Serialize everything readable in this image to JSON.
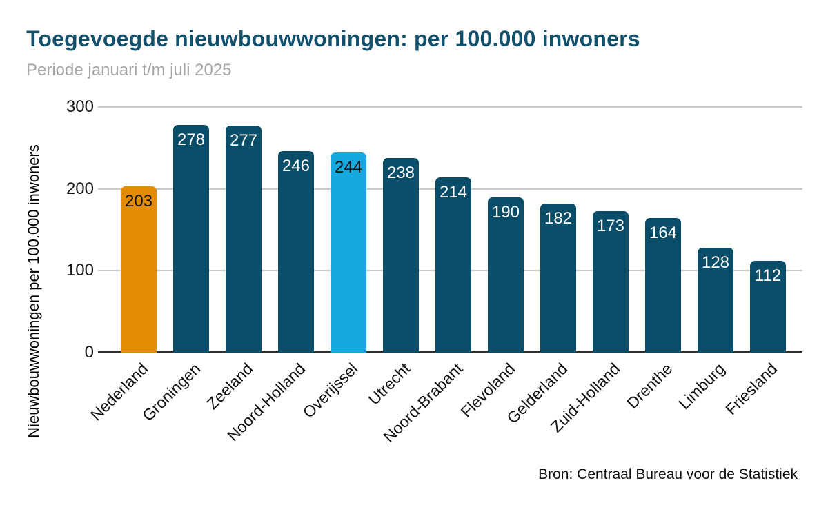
{
  "header": {
    "title": "Toegevoegde nieuwbouwwoningen: per 100.000 inwoners",
    "subtitle": "Periode januari t/m juli 2025"
  },
  "footer": {
    "source": "Bron: Centraal Bureau voor de Statistiek"
  },
  "chart_data": {
    "type": "bar",
    "title": "Toegevoegde nieuwbouwwoningen: per 100.000 inwoners",
    "subtitle": "Periode januari t/m juli 2025",
    "categories": [
      "Nederland",
      "Groningen",
      "Zeeland",
      "Noord-Holland",
      "Overijssel",
      "Utrecht",
      "Noord-Brabant",
      "Flevoland",
      "Gelderland",
      "Zuid-Holland",
      "Drenthe",
      "Limburg",
      "Friesland"
    ],
    "values": [
      203,
      278,
      277,
      246,
      244,
      238,
      214,
      190,
      182,
      173,
      164,
      128,
      112
    ],
    "xlabel": "",
    "ylabel": "Nieuwbouwwoningen per 100.000 inwoners",
    "ylim": [
      0,
      300
    ],
    "yticks": [
      0,
      100,
      200,
      300
    ],
    "grid": true,
    "legend": false,
    "source": "Bron: Centraal Bureau voor de Statistiek",
    "bar_colors": [
      "#E28C05",
      "#0A4D68",
      "#0A4D68",
      "#0A4D68",
      "#16A9E0",
      "#0A4D68",
      "#0A4D68",
      "#0A4D68",
      "#0A4D68",
      "#0A4D68",
      "#0A4D68",
      "#0A4D68",
      "#0A4D68"
    ],
    "value_label_colors": [
      "#111111",
      "#FFFFFF",
      "#FFFFFF",
      "#FFFFFF",
      "#111111",
      "#FFFFFF",
      "#FFFFFF",
      "#FFFFFF",
      "#FFFFFF",
      "#FFFFFF",
      "#FFFFFF",
      "#FFFFFF",
      "#FFFFFF"
    ],
    "colors": {
      "bar_default": "#0A4D68",
      "bar_highlight_nederland": "#E28C05",
      "bar_highlight_overijssel": "#16A9E0",
      "title": "#12506B",
      "subtitle": "#A5A5A5",
      "gridline": "#C9C9C9",
      "axis_line": "#2E2E2E"
    }
  }
}
